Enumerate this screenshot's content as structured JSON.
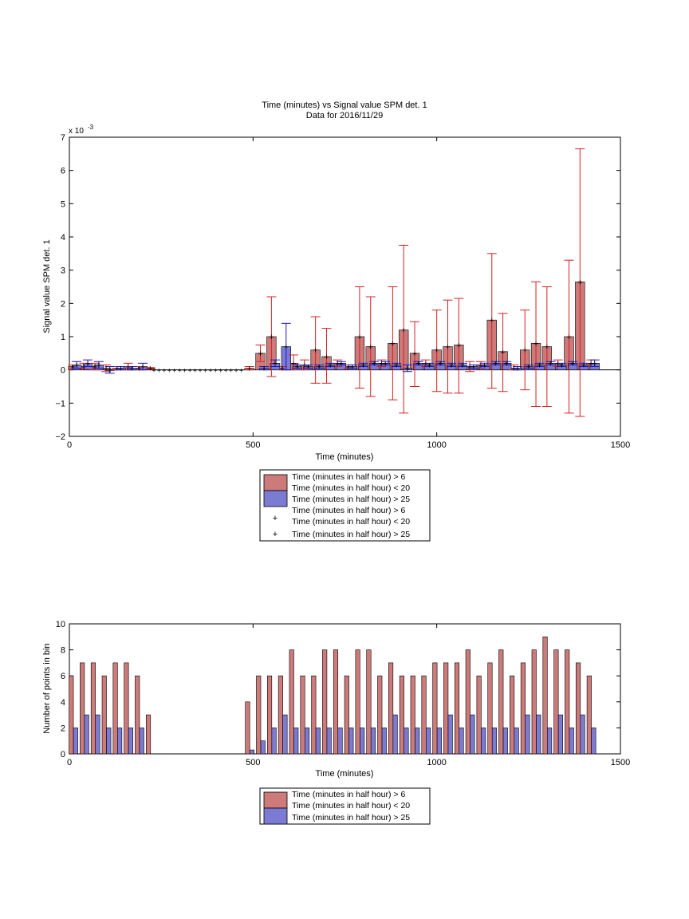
{
  "figure": {
    "title_line1": "Time (minutes) vs Signal value SPM det. 1",
    "title_line2": "Data for 2016/11/29"
  },
  "colors": {
    "red_fill": "#cc7a7a",
    "blue_fill": "#7b7bd4",
    "red_marker": "#d42020",
    "blue_marker": "#1818c8"
  },
  "chart_data": [
    {
      "type": "bar",
      "title": "Time (minutes) vs Signal value SPM det. 1\nData for 2016/11/29",
      "xlabel": "Time (minutes)",
      "ylabel": "Signal value SPM det. 1",
      "y_exponent_label": "x 10",
      "y_exponent": "-3",
      "xlim": [
        0,
        1500
      ],
      "ylim": [
        -2,
        7
      ],
      "y_scale_note": "values in units of 1e-3",
      "xticks": [
        "0",
        "500",
        "1000",
        "1500"
      ],
      "yticks": [
        "−2",
        "−1",
        "0",
        "1",
        "2",
        "3",
        "4",
        "5",
        "6",
        "7"
      ],
      "legend_placement": "below plot",
      "legend": [
        "Time (minutes in half hour) > 6",
        "Time (minutes in half hour) < 20",
        "Time (minutes in half hour) > 25",
        "Time (minutes in half hour) > 6",
        "Time (minutes in half hour) < 20",
        "Time (minutes in half hour) > 25"
      ],
      "series": [
        {
          "color": "red",
          "points": [
            {
              "x": 10,
              "y": 0.1,
              "lo": 0.05,
              "hi": 0.15
            },
            {
              "x": 40,
              "y": 0.1,
              "lo": 0.02,
              "hi": 0.2
            },
            {
              "x": 70,
              "y": 0.1,
              "lo": 0.0,
              "hi": 0.2
            },
            {
              "x": 100,
              "y": 0.05,
              "lo": -0.05,
              "hi": 0.15
            },
            {
              "x": 130,
              "y": 0.05,
              "lo": 0.0,
              "hi": 0.1
            },
            {
              "x": 160,
              "y": 0.1,
              "lo": 0.0,
              "hi": 0.2
            },
            {
              "x": 190,
              "y": 0.05,
              "lo": 0.0,
              "hi": 0.1
            },
            {
              "x": 220,
              "y": 0.05,
              "lo": 0.03,
              "hi": 0.07
            },
            {
              "x": 490,
              "y": 0.05,
              "lo": 0.0,
              "hi": 0.1
            },
            {
              "x": 520,
              "y": 0.5,
              "lo": 0.25,
              "hi": 0.75
            },
            {
              "x": 550,
              "y": 1.0,
              "lo": -0.2,
              "hi": 2.2
            },
            {
              "x": 580,
              "y": 0.05,
              "lo": 0.0,
              "hi": 0.1
            },
            {
              "x": 610,
              "y": 0.2,
              "lo": 0.0,
              "hi": 0.45
            },
            {
              "x": 640,
              "y": 0.15,
              "lo": 0.0,
              "hi": 0.3
            },
            {
              "x": 670,
              "y": 0.6,
              "lo": -0.4,
              "hi": 1.6
            },
            {
              "x": 700,
              "y": 0.4,
              "lo": -0.4,
              "hi": 1.25
            },
            {
              "x": 730,
              "y": 0.2,
              "lo": 0.1,
              "hi": 0.3
            },
            {
              "x": 760,
              "y": 0.1,
              "lo": 0.05,
              "hi": 0.15
            },
            {
              "x": 790,
              "y": 1.0,
              "lo": -0.55,
              "hi": 2.5
            },
            {
              "x": 820,
              "y": 0.7,
              "lo": -0.8,
              "hi": 2.2
            },
            {
              "x": 850,
              "y": 0.2,
              "lo": 0.1,
              "hi": 0.3
            },
            {
              "x": 880,
              "y": 0.8,
              "lo": -0.9,
              "hi": 2.5
            },
            {
              "x": 910,
              "y": 1.2,
              "lo": -1.3,
              "hi": 3.75
            },
            {
              "x": 940,
              "y": 0.5,
              "lo": -0.5,
              "hi": 1.45
            },
            {
              "x": 970,
              "y": 0.2,
              "lo": 0.1,
              "hi": 0.3
            },
            {
              "x": 1000,
              "y": 0.6,
              "lo": -0.65,
              "hi": 1.8
            },
            {
              "x": 1030,
              "y": 0.7,
              "lo": -0.7,
              "hi": 2.1
            },
            {
              "x": 1060,
              "y": 0.75,
              "lo": -0.7,
              "hi": 2.15
            },
            {
              "x": 1090,
              "y": 0.1,
              "lo": -0.05,
              "hi": 0.25
            },
            {
              "x": 1120,
              "y": 0.15,
              "lo": 0.05,
              "hi": 0.25
            },
            {
              "x": 1150,
              "y": 1.5,
              "lo": -0.55,
              "hi": 3.5
            },
            {
              "x": 1180,
              "y": 0.55,
              "lo": -0.65,
              "hi": 1.7
            },
            {
              "x": 1210,
              "y": 0.05,
              "lo": 0.0,
              "hi": 0.15
            },
            {
              "x": 1240,
              "y": 0.6,
              "lo": -0.6,
              "hi": 1.8
            },
            {
              "x": 1270,
              "y": 0.8,
              "lo": -1.1,
              "hi": 2.65
            },
            {
              "x": 1300,
              "y": 0.7,
              "lo": -1.1,
              "hi": 2.5
            },
            {
              "x": 1330,
              "y": 0.2,
              "lo": 0.1,
              "hi": 0.3
            },
            {
              "x": 1360,
              "y": 1.0,
              "lo": -1.3,
              "hi": 3.3
            },
            {
              "x": 1390,
              "y": 2.65,
              "lo": -1.4,
              "hi": 6.65
            },
            {
              "x": 1420,
              "y": 0.2,
              "lo": 0.1,
              "hi": 0.3
            }
          ]
        },
        {
          "color": "blue",
          "points": [
            {
              "x": 20,
              "y": 0.15,
              "lo": 0.05,
              "hi": 0.25
            },
            {
              "x": 50,
              "y": 0.2,
              "lo": 0.1,
              "hi": 0.3
            },
            {
              "x": 80,
              "y": 0.15,
              "lo": 0.05,
              "hi": 0.25
            },
            {
              "x": 110,
              "y": 0.0,
              "lo": -0.1,
              "hi": 0.1
            },
            {
              "x": 140,
              "y": 0.05,
              "lo": 0.0,
              "hi": 0.1
            },
            {
              "x": 170,
              "y": 0.05,
              "lo": 0.0,
              "hi": 0.1
            },
            {
              "x": 200,
              "y": 0.1,
              "lo": 0.0,
              "hi": 0.2
            },
            {
              "x": 530,
              "y": 0.05,
              "lo": 0.0,
              "hi": 0.1
            },
            {
              "x": 560,
              "y": 0.2,
              "lo": 0.1,
              "hi": 0.3
            },
            {
              "x": 590,
              "y": 0.7,
              "lo": 0.0,
              "hi": 1.4
            },
            {
              "x": 620,
              "y": 0.1,
              "lo": 0.05,
              "hi": 0.15
            },
            {
              "x": 650,
              "y": 0.1,
              "lo": 0.05,
              "hi": 0.15
            },
            {
              "x": 680,
              "y": 0.1,
              "lo": 0.05,
              "hi": 0.15
            },
            {
              "x": 710,
              "y": 0.15,
              "lo": 0.1,
              "hi": 0.2
            },
            {
              "x": 740,
              "y": 0.2,
              "lo": 0.15,
              "hi": 0.25
            },
            {
              "x": 770,
              "y": 0.1,
              "lo": 0.05,
              "hi": 0.15
            },
            {
              "x": 800,
              "y": 0.15,
              "lo": 0.1,
              "hi": 0.2
            },
            {
              "x": 830,
              "y": 0.2,
              "lo": 0.15,
              "hi": 0.25
            },
            {
              "x": 860,
              "y": 0.2,
              "lo": 0.15,
              "hi": 0.25
            },
            {
              "x": 890,
              "y": 0.15,
              "lo": 0.1,
              "hi": 0.2
            },
            {
              "x": 920,
              "y": 0.05,
              "lo": -0.05,
              "hi": 0.15
            },
            {
              "x": 950,
              "y": 0.2,
              "lo": 0.15,
              "hi": 0.25
            },
            {
              "x": 980,
              "y": 0.15,
              "lo": 0.1,
              "hi": 0.2
            },
            {
              "x": 1010,
              "y": 0.2,
              "lo": 0.15,
              "hi": 0.25
            },
            {
              "x": 1040,
              "y": 0.15,
              "lo": 0.1,
              "hi": 0.2
            },
            {
              "x": 1070,
              "y": 0.15,
              "lo": 0.1,
              "hi": 0.2
            },
            {
              "x": 1100,
              "y": 0.1,
              "lo": 0.05,
              "hi": 0.15
            },
            {
              "x": 1130,
              "y": 0.15,
              "lo": 0.1,
              "hi": 0.2
            },
            {
              "x": 1160,
              "y": 0.2,
              "lo": 0.15,
              "hi": 0.25
            },
            {
              "x": 1190,
              "y": 0.2,
              "lo": 0.15,
              "hi": 0.25
            },
            {
              "x": 1220,
              "y": 0.05,
              "lo": 0.0,
              "hi": 0.1
            },
            {
              "x": 1250,
              "y": 0.1,
              "lo": 0.05,
              "hi": 0.15
            },
            {
              "x": 1280,
              "y": 0.15,
              "lo": 0.1,
              "hi": 0.2
            },
            {
              "x": 1310,
              "y": 0.2,
              "lo": 0.15,
              "hi": 0.25
            },
            {
              "x": 1340,
              "y": 0.15,
              "lo": 0.1,
              "hi": 0.2
            },
            {
              "x": 1370,
              "y": 0.2,
              "lo": 0.15,
              "hi": 0.25
            },
            {
              "x": 1400,
              "y": 0.15,
              "lo": 0.1,
              "hi": 0.2
            },
            {
              "x": 1430,
              "y": 0.2,
              "lo": 0.1,
              "hi": 0.3
            }
          ]
        }
      ]
    },
    {
      "type": "bar",
      "title": "",
      "xlabel": "Time (minutes)",
      "ylabel": "Number of points in bin",
      "xlim": [
        0,
        1500
      ],
      "ylim": [
        0,
        10
      ],
      "xticks": [
        "0",
        "500",
        "1000",
        "1500"
      ],
      "yticks": [
        "0",
        "2",
        "4",
        "6",
        "8",
        "10"
      ],
      "legend_placement": "below plot",
      "legend": [
        "Time (minutes in half hour) > 6",
        "Time (minutes in half hour) < 20",
        "Time (minutes in half hour) > 25"
      ],
      "series": [
        {
          "color": "red",
          "points": [
            {
              "x": 5,
              "y": 6
            },
            {
              "x": 35,
              "y": 7
            },
            {
              "x": 65,
              "y": 7
            },
            {
              "x": 95,
              "y": 6
            },
            {
              "x": 125,
              "y": 7
            },
            {
              "x": 155,
              "y": 7
            },
            {
              "x": 185,
              "y": 6
            },
            {
              "x": 215,
              "y": 3
            },
            {
              "x": 485,
              "y": 4
            },
            {
              "x": 515,
              "y": 6
            },
            {
              "x": 545,
              "y": 6
            },
            {
              "x": 575,
              "y": 6
            },
            {
              "x": 605,
              "y": 8
            },
            {
              "x": 635,
              "y": 6
            },
            {
              "x": 665,
              "y": 6
            },
            {
              "x": 695,
              "y": 8
            },
            {
              "x": 725,
              "y": 8
            },
            {
              "x": 755,
              "y": 6
            },
            {
              "x": 785,
              "y": 8
            },
            {
              "x": 815,
              "y": 8
            },
            {
              "x": 845,
              "y": 6
            },
            {
              "x": 875,
              "y": 7
            },
            {
              "x": 905,
              "y": 6
            },
            {
              "x": 935,
              "y": 6
            },
            {
              "x": 965,
              "y": 6
            },
            {
              "x": 995,
              "y": 7
            },
            {
              "x": 1025,
              "y": 7
            },
            {
              "x": 1055,
              "y": 7
            },
            {
              "x": 1085,
              "y": 8
            },
            {
              "x": 1115,
              "y": 6
            },
            {
              "x": 1145,
              "y": 7
            },
            {
              "x": 1175,
              "y": 8
            },
            {
              "x": 1205,
              "y": 6
            },
            {
              "x": 1235,
              "y": 7
            },
            {
              "x": 1265,
              "y": 8
            },
            {
              "x": 1295,
              "y": 9
            },
            {
              "x": 1325,
              "y": 8
            },
            {
              "x": 1355,
              "y": 8
            },
            {
              "x": 1385,
              "y": 7
            },
            {
              "x": 1415,
              "y": 6
            }
          ]
        },
        {
          "color": "blue",
          "points": [
            {
              "x": 17,
              "y": 2
            },
            {
              "x": 47,
              "y": 3
            },
            {
              "x": 77,
              "y": 3
            },
            {
              "x": 107,
              "y": 2
            },
            {
              "x": 137,
              "y": 2
            },
            {
              "x": 167,
              "y": 2
            },
            {
              "x": 197,
              "y": 2
            },
            {
              "x": 497,
              "y": 0.3
            },
            {
              "x": 527,
              "y": 1
            },
            {
              "x": 557,
              "y": 2
            },
            {
              "x": 587,
              "y": 3
            },
            {
              "x": 617,
              "y": 2
            },
            {
              "x": 647,
              "y": 2
            },
            {
              "x": 677,
              "y": 2
            },
            {
              "x": 707,
              "y": 2
            },
            {
              "x": 737,
              "y": 2
            },
            {
              "x": 767,
              "y": 2
            },
            {
              "x": 797,
              "y": 2
            },
            {
              "x": 827,
              "y": 2
            },
            {
              "x": 857,
              "y": 2
            },
            {
              "x": 887,
              "y": 3
            },
            {
              "x": 917,
              "y": 2
            },
            {
              "x": 947,
              "y": 2
            },
            {
              "x": 977,
              "y": 2
            },
            {
              "x": 1007,
              "y": 2
            },
            {
              "x": 1037,
              "y": 3
            },
            {
              "x": 1067,
              "y": 2
            },
            {
              "x": 1097,
              "y": 3
            },
            {
              "x": 1127,
              "y": 2
            },
            {
              "x": 1157,
              "y": 2
            },
            {
              "x": 1187,
              "y": 2
            },
            {
              "x": 1217,
              "y": 2
            },
            {
              "x": 1247,
              "y": 3
            },
            {
              "x": 1277,
              "y": 3
            },
            {
              "x": 1307,
              "y": 2
            },
            {
              "x": 1337,
              "y": 3
            },
            {
              "x": 1367,
              "y": 2
            },
            {
              "x": 1397,
              "y": 3
            },
            {
              "x": 1427,
              "y": 2
            }
          ]
        }
      ]
    }
  ]
}
